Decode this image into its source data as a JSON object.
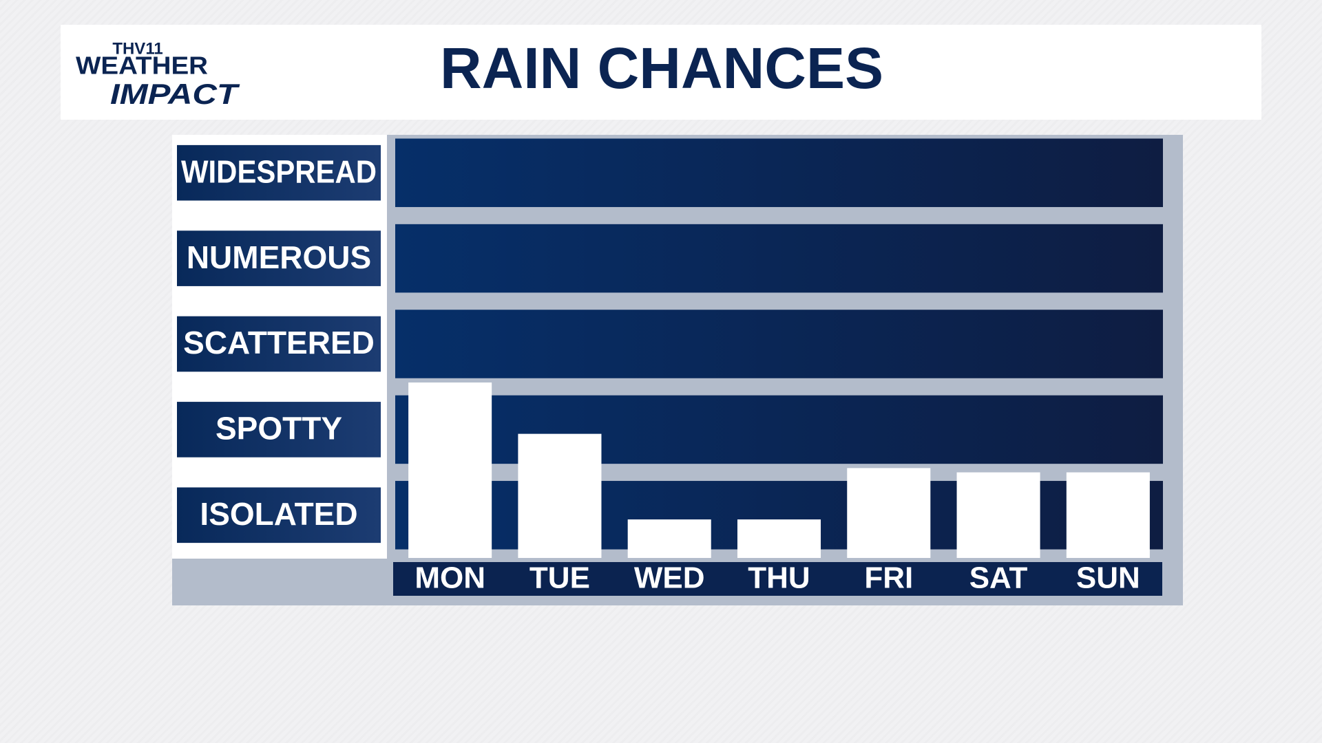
{
  "logo": {
    "station": "THV11",
    "line1": "WEATHER",
    "line2": "IMPACT"
  },
  "chart_data": {
    "type": "bar",
    "title": "RAIN CHANCES",
    "categories": [
      "MON",
      "TUE",
      "WED",
      "THU",
      "FRI",
      "SAT",
      "SUN"
    ],
    "values": [
      2.05,
      1.45,
      0.45,
      0.45,
      1.05,
      1.0,
      1.0
    ],
    "color": "#ffffff",
    "ylim": [
      0,
      5
    ],
    "yticks": [
      {
        "value": 0.5,
        "label": "ISOLATED"
      },
      {
        "value": 1.5,
        "label": "SPOTTY"
      },
      {
        "value": 2.5,
        "label": "SCATTERED"
      },
      {
        "value": 3.5,
        "label": "NUMEROUS"
      },
      {
        "value": 4.5,
        "label": "WIDESPREAD"
      }
    ],
    "grid": true
  }
}
